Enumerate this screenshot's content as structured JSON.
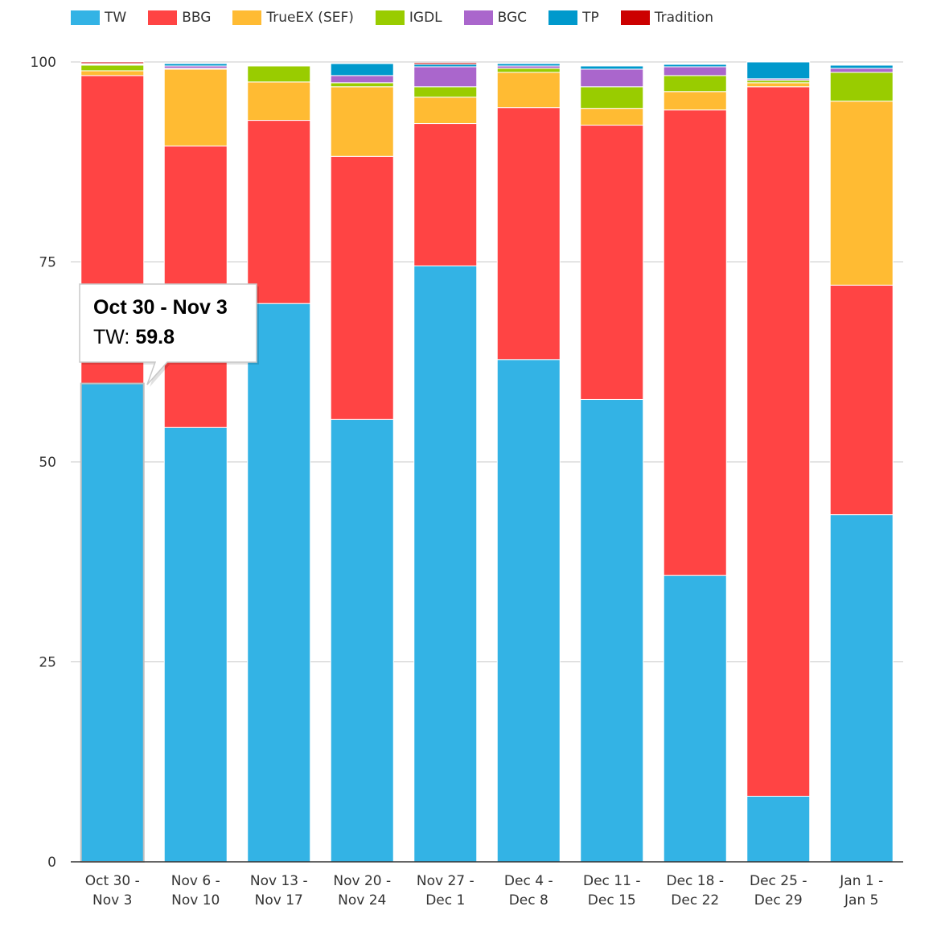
{
  "chart_data": {
    "type": "bar",
    "stacked": true,
    "categories": [
      [
        "Oct 30 -",
        "Nov 3"
      ],
      [
        "Nov 6 -",
        "Nov 10"
      ],
      [
        "Nov 13 -",
        "Nov 17"
      ],
      [
        "Nov 20 -",
        "Nov 24"
      ],
      [
        "Nov 27 -",
        "Dec 1"
      ],
      [
        "Dec 4 -",
        "Dec 8"
      ],
      [
        "Dec 11 -",
        "Dec 15"
      ],
      [
        "Dec 18 -",
        "Dec 22"
      ],
      [
        "Dec 25 -",
        "Dec 29"
      ],
      [
        "Jan 1 -",
        "Jan 5"
      ]
    ],
    "series": [
      {
        "name": "TW",
        "color": "#33b3e5",
        "values": [
          59.8,
          54.3,
          69.8,
          55.3,
          74.5,
          62.8,
          57.8,
          35.8,
          8.2,
          43.4
        ]
      },
      {
        "name": "BBG",
        "color": "#ff4444",
        "values": [
          38.5,
          35.2,
          22.9,
          32.9,
          17.8,
          31.5,
          34.3,
          58.2,
          88.7,
          28.7
        ]
      },
      {
        "name": "TrueEX (SEF)",
        "color": "#ffbb33",
        "values": [
          0.6,
          9.6,
          4.8,
          8.7,
          3.3,
          4.4,
          2.1,
          2.3,
          0.5,
          23.0
        ]
      },
      {
        "name": "IGDL",
        "color": "#99cc00",
        "values": [
          0.7,
          0.1,
          2.0,
          0.5,
          1.3,
          0.5,
          2.7,
          2.0,
          0.3,
          3.6
        ]
      },
      {
        "name": "BGC",
        "color": "#aa66cc",
        "values": [
          0.1,
          0.3,
          0.1,
          0.9,
          2.5,
          0.3,
          2.2,
          1.1,
          0.2,
          0.5
        ]
      },
      {
        "name": "TP",
        "color": "#0099cc",
        "values": [
          0.1,
          0.3,
          0.1,
          1.5,
          0.3,
          0.3,
          0.4,
          0.3,
          2.1,
          0.4
        ]
      },
      {
        "name": "Tradition",
        "color": "#cc0000",
        "values": [
          0.2,
          0.1,
          0.1,
          0.1,
          0.2,
          0.1,
          0.1,
          0.1,
          0.0,
          0.1
        ]
      }
    ],
    "ylim": [
      0,
      100
    ],
    "yticks": [
      0,
      25,
      50,
      75,
      100
    ],
    "grid": true,
    "legend_position": "top-left",
    "title": "",
    "xlabel": "",
    "ylabel": ""
  },
  "tooltip": {
    "title": "Oct 30 - Nov 3",
    "series_label": "TW:",
    "value": "59.8"
  }
}
